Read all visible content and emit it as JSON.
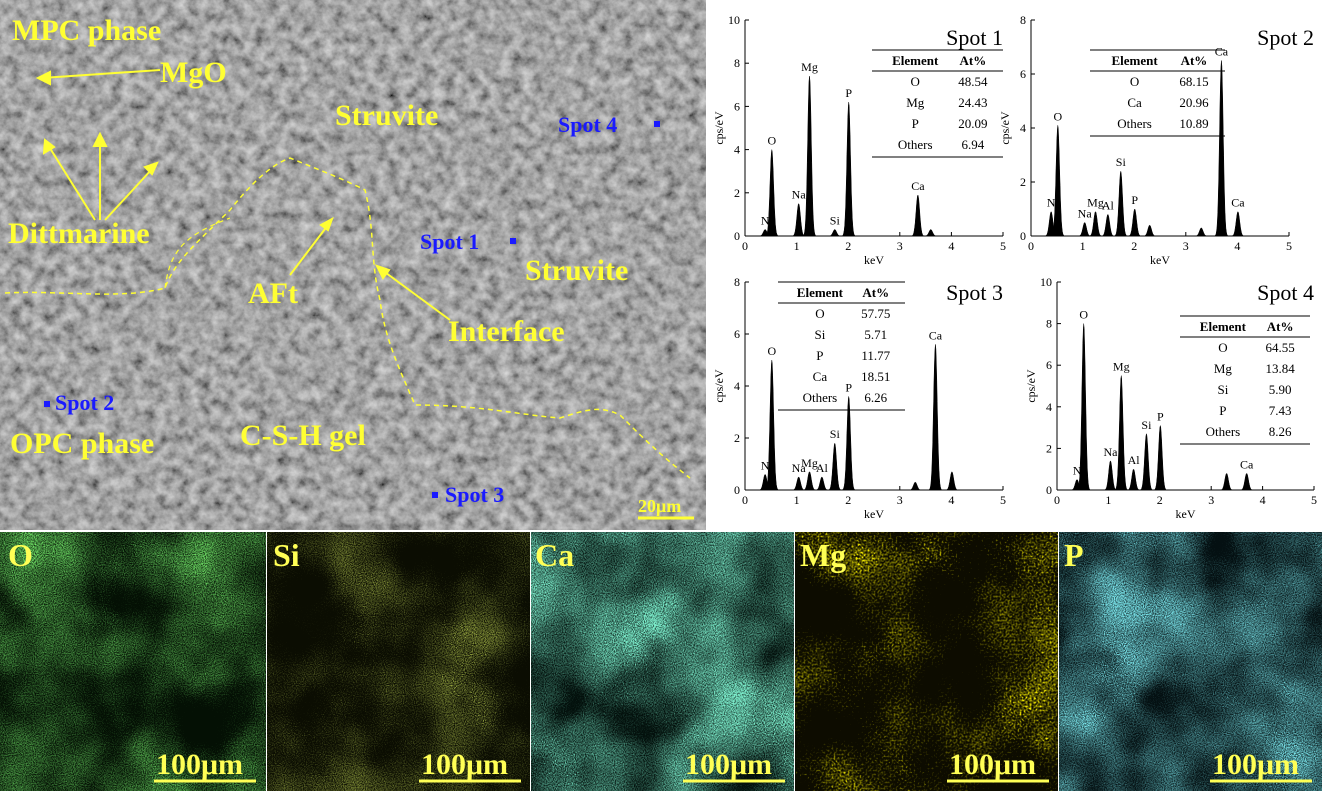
{
  "sem": {
    "labels": [
      "MPC phase",
      "MgO",
      "Struvite",
      "Dittmarine",
      "AFt",
      "Struvite",
      "Interface",
      "OPC phase",
      "C-S-H gel"
    ],
    "spots": [
      "Spot 4",
      "Spot 1",
      "Spot 2",
      "Spot 3"
    ],
    "scale_bar": "20μm"
  },
  "maps": [
    {
      "element": "O",
      "scale_bar": "100μm"
    },
    {
      "element": "Si",
      "scale_bar": "100μm"
    },
    {
      "element": "Ca",
      "scale_bar": "100μm"
    },
    {
      "element": "Mg",
      "scale_bar": "100μm"
    },
    {
      "element": "P",
      "scale_bar": "100μm"
    }
  ],
  "chart_data": [
    {
      "type": "spectrum",
      "title": "Spot 1",
      "x_label": "keV",
      "y_label": "cps/eV",
      "color": "#000000",
      "xlim": [
        0,
        5
      ],
      "xticks": [
        0,
        1,
        2,
        3,
        4,
        5
      ],
      "ylim": [
        0,
        10
      ],
      "yticks": [
        0,
        2,
        4,
        6,
        8,
        10
      ],
      "x": [
        0.39,
        0.52,
        1.04,
        1.25,
        1.74,
        2.01,
        3.35,
        3.6
      ],
      "values": [
        0.3,
        4.0,
        1.5,
        7.4,
        0.3,
        6.2,
        1.9,
        0.3
      ],
      "peak_labels": [
        "N",
        "O",
        "Na",
        "Mg",
        "Si",
        "P",
        "Ca",
        null
      ],
      "table": {
        "columns": [
          "Element",
          "At%"
        ],
        "rows": [
          [
            "O",
            "48.54"
          ],
          [
            "Mg",
            "24.43"
          ],
          [
            "P",
            "20.09"
          ],
          [
            "Others",
            "6.94"
          ]
        ]
      }
    },
    {
      "type": "spectrum",
      "title": "Spot 2",
      "x_label": "keV",
      "y_label": "cps/eV",
      "color": "#000000",
      "xlim": [
        0,
        5
      ],
      "xticks": [
        0,
        1,
        2,
        3,
        4,
        5
      ],
      "ylim": [
        0,
        8
      ],
      "yticks": [
        0,
        2,
        4,
        6,
        8
      ],
      "x": [
        0.39,
        0.52,
        1.04,
        1.25,
        1.49,
        1.74,
        2.01,
        2.3,
        3.3,
        3.69,
        4.01
      ],
      "values": [
        0.9,
        4.1,
        0.5,
        0.9,
        0.8,
        2.4,
        1.0,
        0.4,
        0.3,
        6.5,
        0.9
      ],
      "peak_labels": [
        "N",
        "O",
        "Na",
        "Mg",
        "Al",
        "Si",
        "P",
        null,
        null,
        "Ca",
        "Ca"
      ],
      "table": {
        "columns": [
          "Element",
          "At%"
        ],
        "rows": [
          [
            "O",
            "68.15"
          ],
          [
            "Ca",
            "20.96"
          ],
          [
            "Others",
            "10.89"
          ]
        ]
      }
    },
    {
      "type": "spectrum",
      "title": "Spot 3",
      "x_label": "keV",
      "y_label": "cps/eV",
      "color": "#000000",
      "xlim": [
        0,
        5
      ],
      "xticks": [
        0,
        1,
        2,
        3,
        4,
        5
      ],
      "ylim": [
        0,
        8
      ],
      "yticks": [
        0,
        2,
        4,
        6,
        8
      ],
      "x": [
        0.39,
        0.52,
        1.04,
        1.25,
        1.49,
        1.74,
        2.01,
        3.3,
        3.69,
        4.01
      ],
      "values": [
        0.6,
        5.0,
        0.5,
        0.7,
        0.5,
        1.8,
        3.6,
        0.3,
        5.6,
        0.7
      ],
      "peak_labels": [
        "N",
        "O",
        "Na",
        "Mg",
        "Al",
        "Si",
        "P",
        null,
        "Ca",
        null
      ],
      "table": {
        "columns": [
          "Element",
          "At%"
        ],
        "rows": [
          [
            "O",
            "57.75"
          ],
          [
            "Si",
            "5.71"
          ],
          [
            "P",
            "11.77"
          ],
          [
            "Ca",
            "18.51"
          ],
          [
            "Others",
            "6.26"
          ]
        ]
      }
    },
    {
      "type": "spectrum",
      "title": "Spot 4",
      "x_label": "keV",
      "y_label": "cps/eV",
      "color": "#000000",
      "xlim": [
        0,
        5
      ],
      "xticks": [
        0,
        1,
        2,
        3,
        4,
        5
      ],
      "ylim": [
        0,
        10
      ],
      "yticks": [
        0,
        2,
        4,
        6,
        8,
        10
      ],
      "x": [
        0.39,
        0.52,
        1.04,
        1.25,
        1.49,
        1.74,
        2.01,
        3.3,
        3.69
      ],
      "values": [
        0.5,
        8.0,
        1.4,
        5.5,
        1.0,
        2.7,
        3.1,
        0.8,
        0.8
      ],
      "peak_labels": [
        "N",
        "O",
        "Na",
        "Mg",
        "Al",
        "Si",
        "P",
        null,
        "Ca"
      ],
      "table": {
        "columns": [
          "Element",
          "At%"
        ],
        "rows": [
          [
            "O",
            "64.55"
          ],
          [
            "Mg",
            "13.84"
          ],
          [
            "Si",
            "5.90"
          ],
          [
            "P",
            "7.43"
          ],
          [
            "Others",
            "8.26"
          ]
        ]
      }
    }
  ]
}
